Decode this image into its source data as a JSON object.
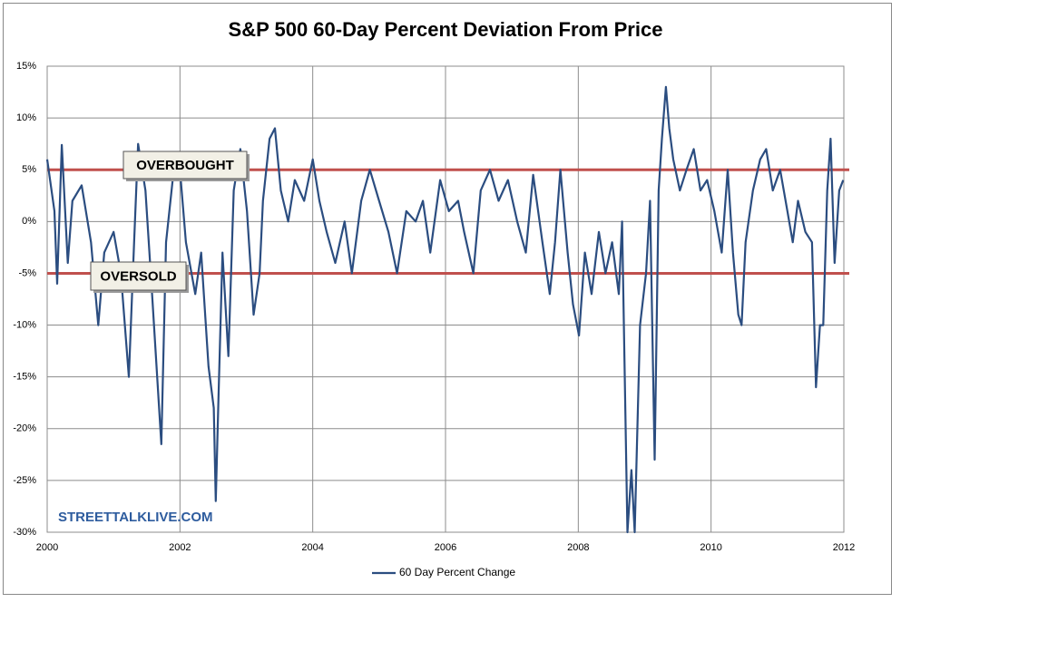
{
  "chart_data": {
    "type": "line",
    "title": "S&P 500 60-Day Percent Deviation From Price",
    "xlim": [
      2000,
      2012
    ],
    "xticks": [
      2000,
      2002,
      2004,
      2006,
      2008,
      2010,
      2012
    ],
    "ylim": [
      -30,
      15
    ],
    "yticks": [
      {
        "value": 15,
        "label": "15%"
      },
      {
        "value": 10,
        "label": "10%"
      },
      {
        "value": 5,
        "label": "5%"
      },
      {
        "value": 0,
        "label": "0%"
      },
      {
        "value": -5,
        "label": "-5%"
      },
      {
        "value": -10,
        "label": "-10%"
      },
      {
        "value": -15,
        "label": "-15%"
      },
      {
        "value": -20,
        "label": "-20%"
      },
      {
        "value": -25,
        "label": "-25%"
      },
      {
        "value": -30,
        "label": "-30%"
      }
    ],
    "grid": true,
    "legend": "bottom",
    "reference_lines": [
      {
        "value": 5,
        "label": "OVERBOUGHT",
        "color": "#c0504d"
      },
      {
        "value": -5,
        "label": "OVERSOLD",
        "color": "#c0504d"
      }
    ],
    "annotations": [
      "STREETTALKLIVE.COM"
    ],
    "x": [
      2000.0,
      2000.11,
      2000.15,
      2000.22,
      2000.31,
      2000.38,
      2000.52,
      2000.66,
      2000.77,
      2000.86,
      2001.0,
      2001.11,
      2001.23,
      2001.31,
      2001.37,
      2001.48,
      2001.58,
      2001.72,
      2001.79,
      2001.89,
      2001.98,
      2002.09,
      2002.23,
      2002.32,
      2002.43,
      2002.51,
      2002.54,
      2002.58,
      2002.64,
      2002.73,
      2002.81,
      2002.91,
      2003.01,
      2003.11,
      2003.2,
      2003.25,
      2003.35,
      2003.43,
      2003.52,
      2003.63,
      2003.73,
      2003.87,
      2004.0,
      2004.1,
      2004.21,
      2004.34,
      2004.48,
      2004.59,
      2004.73,
      2004.86,
      2005.0,
      2005.14,
      2005.27,
      2005.41,
      2005.55,
      2005.66,
      2005.77,
      2005.92,
      2006.05,
      2006.19,
      2006.28,
      2006.42,
      2006.53,
      2006.67,
      2006.8,
      2006.94,
      2007.08,
      2007.21,
      2007.32,
      2007.46,
      2007.57,
      2007.65,
      2007.73,
      2007.84,
      2007.92,
      2008.01,
      2008.1,
      2008.2,
      2008.31,
      2008.41,
      2008.51,
      2008.61,
      2008.66,
      2008.74,
      2008.8,
      2008.85,
      2008.93,
      2009.02,
      2009.08,
      2009.15,
      2009.21,
      2009.26,
      2009.32,
      2009.37,
      2009.43,
      2009.53,
      2009.63,
      2009.74,
      2009.84,
      2009.94,
      2010.05,
      2010.16,
      2010.25,
      2010.33,
      2010.41,
      2010.46,
      2010.52,
      2010.63,
      2010.74,
      2010.83,
      2010.93,
      2011.04,
      2011.15,
      2011.23,
      2011.31,
      2011.42,
      2011.52,
      2011.58,
      2011.64,
      2011.69,
      2011.75,
      2011.8,
      2011.86,
      2011.93,
      2011.99
    ],
    "series": [
      {
        "name": "60 Day Percent Change",
        "color": "#2b4d80",
        "values": [
          6,
          1,
          -6,
          7.4,
          -4,
          2,
          3.5,
          -2,
          -10,
          -3,
          -1,
          -5,
          -15,
          -2,
          7.5,
          3,
          -7,
          -21.5,
          -2,
          4,
          6.5,
          -2,
          -7,
          -3,
          -14,
          -18,
          -27,
          -17,
          -3,
          -13,
          3,
          7,
          1,
          -9,
          -5,
          2,
          8,
          9,
          3,
          0,
          4,
          2,
          6,
          2,
          -1,
          -4,
          0,
          -5,
          2,
          5,
          2,
          -1,
          -5,
          1,
          0,
          2,
          -3,
          4,
          1,
          2,
          -1,
          -5,
          3,
          5,
          2,
          4,
          0,
          -3,
          4.5,
          -2,
          -7,
          -2,
          5,
          -3,
          -8,
          -11,
          -3,
          -7,
          -1,
          -5,
          -2,
          -7,
          0,
          -30,
          -24,
          -30,
          -10,
          -5,
          2,
          -23,
          3,
          8,
          13,
          9,
          6,
          3,
          5,
          7,
          3,
          4,
          1,
          -3,
          5,
          -3,
          -9,
          -10,
          -2,
          3,
          6,
          7,
          3,
          5,
          1,
          -2,
          2,
          -1,
          -2,
          -16,
          -10,
          -10,
          3,
          8,
          -4,
          3,
          4
        ]
      }
    ]
  }
}
